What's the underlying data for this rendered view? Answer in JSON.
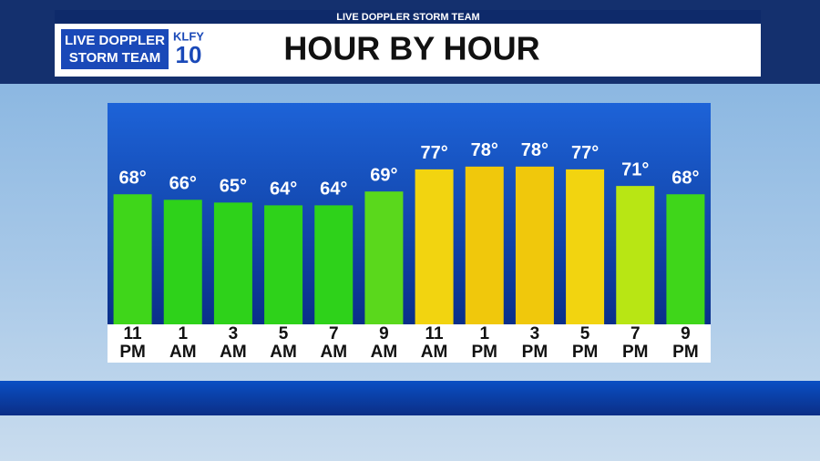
{
  "banner": {
    "strip": "LIVE DOPPLER STORM TEAM",
    "logo_line1": "LIVE DOPPLER",
    "logo_line2": "STORM TEAM",
    "station": "KLFY",
    "channel": "10"
  },
  "chart_data": {
    "type": "bar",
    "title": "HOUR BY HOUR",
    "categories": [
      "11 PM",
      "1 AM",
      "3 AM",
      "5 AM",
      "7 AM",
      "9 AM",
      "11 AM",
      "1 PM",
      "3 PM",
      "5 PM",
      "7 PM",
      "9 PM"
    ],
    "values": [
      68,
      66,
      65,
      64,
      64,
      69,
      77,
      78,
      78,
      77,
      71,
      68
    ],
    "value_labels": [
      "68°",
      "66°",
      "65°",
      "64°",
      "64°",
      "69°",
      "77°",
      "78°",
      "78°",
      "77°",
      "71°",
      "68°"
    ],
    "colors": [
      "#3fd61a",
      "#2ed21a",
      "#2ed21a",
      "#2ed21a",
      "#2ed21a",
      "#5ad81c",
      "#f2d410",
      "#f0c80c",
      "#f0c80c",
      "#f2d410",
      "#b8e614",
      "#3fd61a"
    ],
    "ylim": [
      21,
      101
    ]
  }
}
